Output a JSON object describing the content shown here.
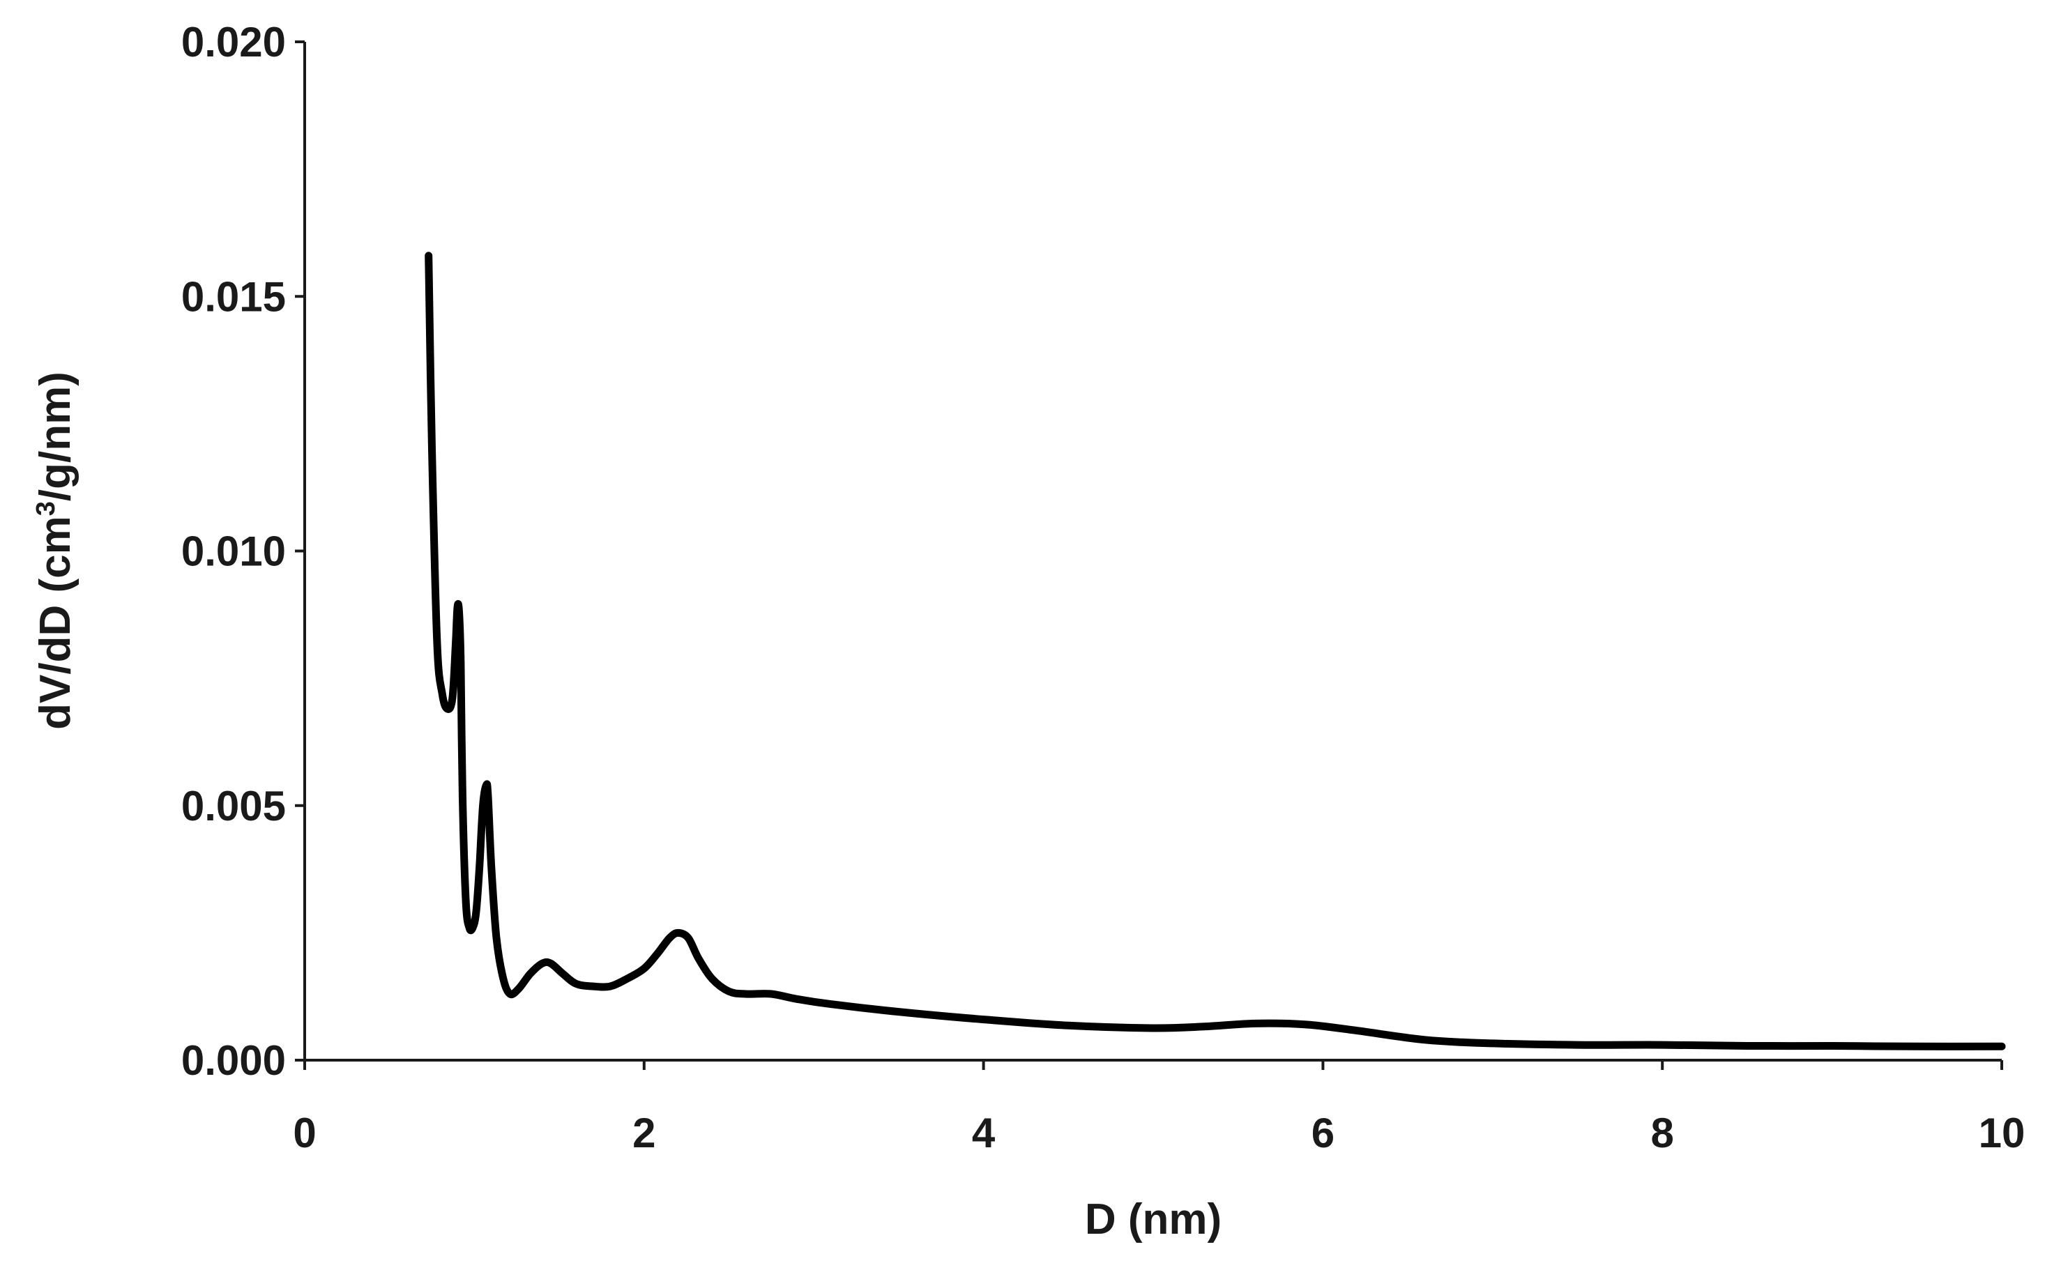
{
  "chart_data": {
    "type": "line",
    "title": "",
    "xlabel": "D (nm)",
    "ylabel_main": "dV/dD (cm",
    "ylabel_sup": "3",
    "ylabel_rest": "/g/nm)",
    "xlim": [
      0,
      10
    ],
    "ylim": [
      0,
      0.02
    ],
    "x_ticks": [
      0,
      2,
      4,
      6,
      8,
      10
    ],
    "x_tick_labels": [
      "0",
      "2",
      "4",
      "6",
      "8",
      "10"
    ],
    "y_ticks": [
      0,
      0.005,
      0.01,
      0.015,
      0.02
    ],
    "y_tick_labels": [
      "0.000",
      "0.005",
      "0.010",
      "0.015",
      "0.020"
    ],
    "grid": false,
    "legend": "none",
    "line_color": "#000000",
    "series": [
      {
        "x": [
          0.73,
          0.75,
          0.78,
          0.81,
          0.84,
          0.87,
          0.89,
          0.9,
          0.91,
          0.92,
          0.93,
          0.95,
          0.97,
          0.99,
          1.01,
          1.03,
          1.05,
          1.07,
          1.08,
          1.1,
          1.13,
          1.17,
          1.21,
          1.26,
          1.33,
          1.4,
          1.45,
          1.52,
          1.6,
          1.7,
          1.8,
          1.9,
          2.0,
          2.08,
          2.15,
          2.2,
          2.26,
          2.32,
          2.4,
          2.5,
          2.6,
          2.75,
          2.9,
          3.1,
          3.5,
          4.0,
          4.5,
          5.0,
          5.3,
          5.6,
          5.9,
          6.2,
          6.6,
          7.0,
          7.5,
          8.0,
          8.5,
          9.0,
          9.5,
          10.0
        ],
        "y": [
          0.0158,
          0.012,
          0.0082,
          0.0072,
          0.0069,
          0.0071,
          0.0082,
          0.0089,
          0.0088,
          0.0078,
          0.0052,
          0.0031,
          0.0026,
          0.0026,
          0.0029,
          0.0038,
          0.005,
          0.0054,
          0.0052,
          0.0038,
          0.0024,
          0.0016,
          0.0013,
          0.0014,
          0.0017,
          0.0019,
          0.0019,
          0.0017,
          0.0015,
          0.00145,
          0.00145,
          0.0016,
          0.0018,
          0.0021,
          0.0024,
          0.0025,
          0.0024,
          0.002,
          0.0016,
          0.00135,
          0.0013,
          0.0013,
          0.0012,
          0.0011,
          0.00095,
          0.0008,
          0.00068,
          0.00063,
          0.00066,
          0.00072,
          0.0007,
          0.00058,
          0.0004,
          0.00033,
          0.0003,
          0.0003,
          0.00028,
          0.00028,
          0.00027,
          0.00027
        ]
      }
    ]
  }
}
